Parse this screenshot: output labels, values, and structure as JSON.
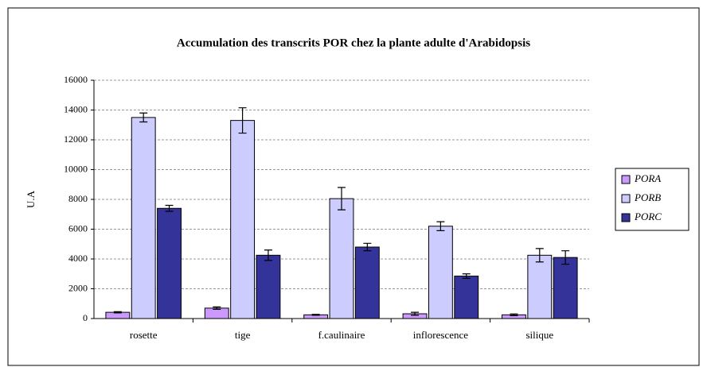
{
  "chart_data": {
    "type": "bar",
    "title": "Accumulation des transcrits POR  chez la plante adulte d'Arabidopsis",
    "y_label": "U.A",
    "categories": [
      "rosette",
      "tige",
      "f.caulinaire",
      "inflorescence",
      "silique"
    ],
    "series": [
      {
        "name": "PORA",
        "color": "#cc99ff",
        "values": [
          420,
          700,
          250,
          320,
          250
        ],
        "errors": [
          40,
          80,
          30,
          100,
          60
        ]
      },
      {
        "name": "PORB",
        "color": "#ccccff",
        "values": [
          13500,
          13300,
          8050,
          6200,
          4250
        ],
        "errors": [
          300,
          850,
          750,
          300,
          450
        ]
      },
      {
        "name": "PORC",
        "color": "#333399",
        "values": [
          7400,
          4250,
          4800,
          2850,
          4100
        ],
        "errors": [
          200,
          350,
          250,
          150,
          450
        ]
      }
    ],
    "ylim": [
      0,
      16000
    ],
    "yticks": [
      0,
      2000,
      4000,
      6000,
      8000,
      10000,
      12000,
      14000,
      16000
    ],
    "grid": true,
    "legend": "right"
  }
}
